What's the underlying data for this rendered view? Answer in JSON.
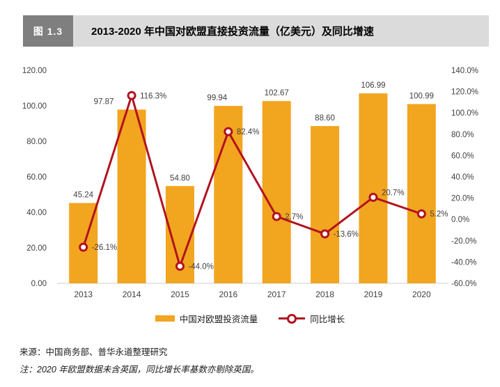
{
  "figure_label": "图 1.3",
  "title": "2013-2020 年中国对欧盟直接投资流量（亿美元）及同比增速",
  "colors": {
    "bar": "#F2A51F",
    "line": "#B1121F",
    "header_box": "#7F7F7F",
    "header_bar": "#DBDBDB",
    "axis_text": "#404040",
    "axis_line": "#D6D6D6"
  },
  "legend": {
    "bar_label": "中国对欧盟投资流量",
    "line_label": "同比增长"
  },
  "source": "来源：中国商务部、普华永道整理研究",
  "note": "注：2020 年欧盟数据未含英国，同比增长率基数亦剔除英国。",
  "chart_data": {
    "type": "bar",
    "subtype": "combo-bar-line-dual-axis",
    "title": "2013-2020 年中国对欧盟直接投资流量（亿美元）及同比增速",
    "categories": [
      "2013",
      "2014",
      "2015",
      "2016",
      "2017",
      "2018",
      "2019",
      "2020"
    ],
    "series": [
      {
        "name": "中国对欧盟投资流量",
        "type": "bar",
        "axis": "left",
        "values": [
          45.24,
          97.87,
          54.8,
          99.94,
          102.67,
          88.6,
          106.99,
          100.99
        ],
        "labels": [
          "45.24",
          "97.87",
          "54.80",
          "99.94",
          "102.67",
          "88.60",
          "106.99",
          "100.99"
        ]
      },
      {
        "name": "同比增长",
        "type": "line",
        "axis": "right",
        "values": [
          -26.1,
          116.3,
          -44.0,
          82.4,
          2.7,
          -13.6,
          20.7,
          5.2
        ],
        "labels": [
          "-26.1%",
          "116.3%",
          "-44.0%",
          "82.4%",
          "2.7%",
          "-13.6%",
          "20.7%",
          "5.2%"
        ]
      }
    ],
    "left_axis": {
      "min": 0,
      "max": 120,
      "step": 20,
      "ticks": [
        "120.00",
        "100.00",
        "80.00",
        "60.00",
        "40.00",
        "20.00",
        "0.00"
      ]
    },
    "right_axis": {
      "min": -60,
      "max": 140,
      "step": 20,
      "ticks": [
        "140.0%",
        "120.0%",
        "100.0%",
        "80.0%",
        "60.0%",
        "40.0%",
        "20.0%",
        "0.0%",
        "-20.0%",
        "-40.0%",
        "-60.0%"
      ]
    },
    "grid": false,
    "legend_position": "bottom"
  }
}
